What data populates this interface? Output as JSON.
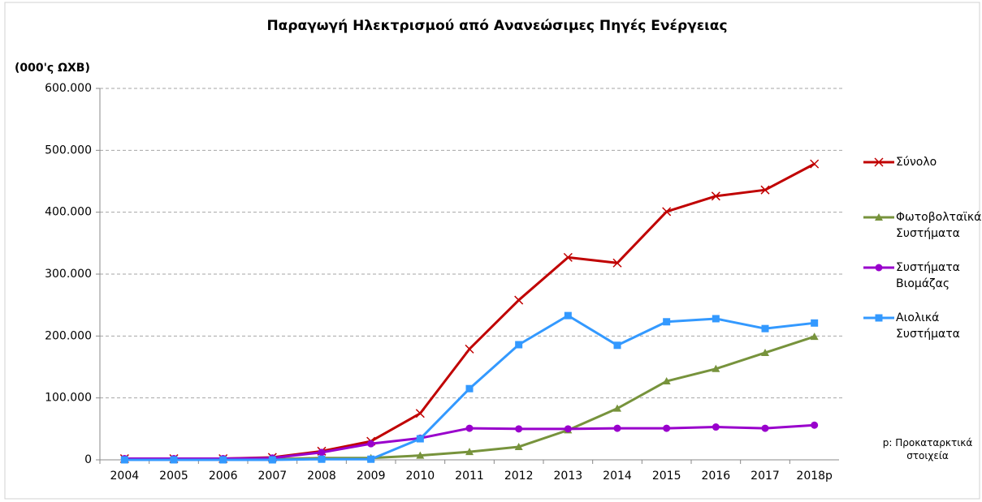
{
  "chart_data": {
    "type": "line",
    "title": "Παραγωγή Ηλεκτρισμού από Ανανεώσιμες Πηγές Ενέργειας",
    "y_label": "(000'ς ΩΧΒ)",
    "note": "p: Προκαταρκτικά στοιχεία",
    "categories": [
      "2004",
      "2005",
      "2006",
      "2007",
      "2008",
      "2009",
      "2010",
      "2011",
      "2012",
      "2013",
      "2014",
      "2015",
      "2016",
      "2017",
      "2018p"
    ],
    "ylim": [
      0,
      600000
    ],
    "yticks": [
      0,
      {
        "value": 100000,
        "label": "100.000"
      },
      {
        "value": 200000,
        "label": "200.000"
      },
      {
        "value": 300000,
        "label": "300.000"
      },
      {
        "value": 400000,
        "label": "400.000"
      },
      {
        "value": 500000,
        "label": "500.000"
      },
      {
        "value": 600000,
        "label": "600.000"
      }
    ],
    "grid": true,
    "legend": "right",
    "series": [
      {
        "name": "Σύνολο",
        "color": "#c00000",
        "marker": "x",
        "values": [
          2000,
          2000,
          2000,
          4000,
          14000,
          30000,
          75000,
          179000,
          258000,
          327000,
          318000,
          401000,
          426000,
          436000,
          478000
        ]
      },
      {
        "name": "Φωτοβολταϊκά Συστήματα",
        "color": "#77933c",
        "marker": "triangle",
        "values": [
          0,
          0,
          0,
          1000,
          3000,
          3000,
          7000,
          13000,
          21000,
          48000,
          83000,
          127000,
          147000,
          173000,
          199000
        ]
      },
      {
        "name": "Συστήματα Βιομάζας",
        "color": "#9900cc",
        "marker": "circle",
        "values": [
          2000,
          2000,
          2000,
          3000,
          12000,
          26000,
          35000,
          51000,
          50000,
          50000,
          51000,
          51000,
          53000,
          51000,
          56000
        ]
      },
      {
        "name": "Αιολικά Συστήματα",
        "color": "#3399ff",
        "marker": "square",
        "values": [
          0,
          0,
          0,
          0,
          1000,
          1000,
          34000,
          115000,
          186000,
          233000,
          185000,
          223000,
          228000,
          212000,
          221000
        ]
      }
    ]
  }
}
